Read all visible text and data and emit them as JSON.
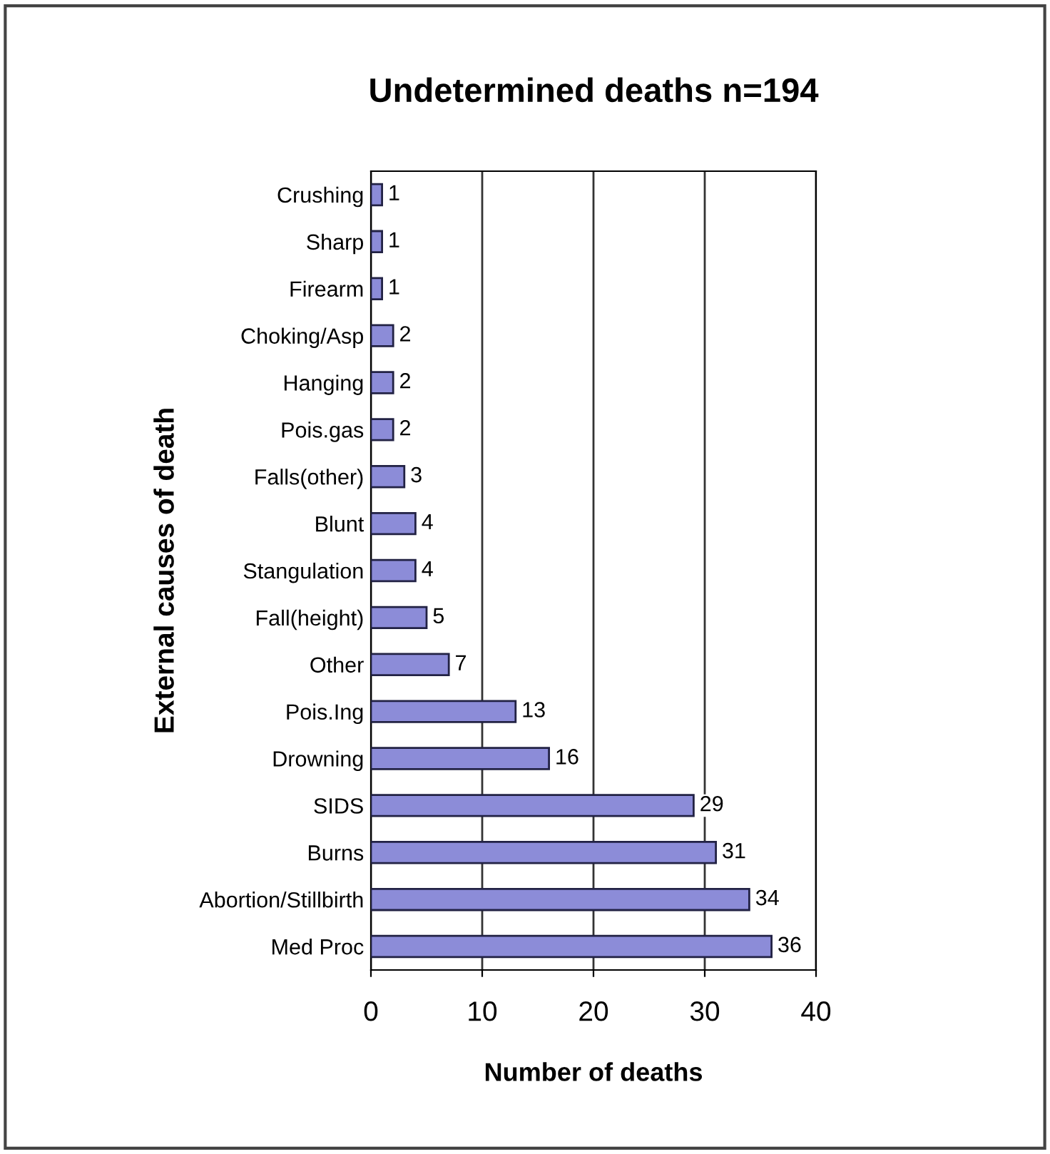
{
  "chart_data": {
    "type": "bar",
    "orientation": "horizontal",
    "title": "Undetermined deaths n=194",
    "xlabel": "Number of deaths",
    "ylabel": "External causes of death",
    "categories": [
      "Crushing",
      "Sharp",
      "Firearm",
      "Choking/Asp",
      "Hanging",
      "Pois.gas",
      "Falls(other)",
      "Blunt",
      "Stangulation",
      "Fall(height)",
      "Other",
      "Pois.Ing",
      "Drowning",
      "SIDS",
      "Burns",
      "Abortion/Stillbirth",
      "Med Proc"
    ],
    "values": [
      1,
      1,
      1,
      2,
      2,
      2,
      3,
      4,
      4,
      5,
      7,
      13,
      16,
      29,
      31,
      34,
      36
    ],
    "color": "#8c8cd8",
    "xlim": [
      0,
      40
    ],
    "xticks": [
      0,
      10,
      20,
      30,
      40
    ],
    "grid": "x",
    "data_labels": true
  }
}
